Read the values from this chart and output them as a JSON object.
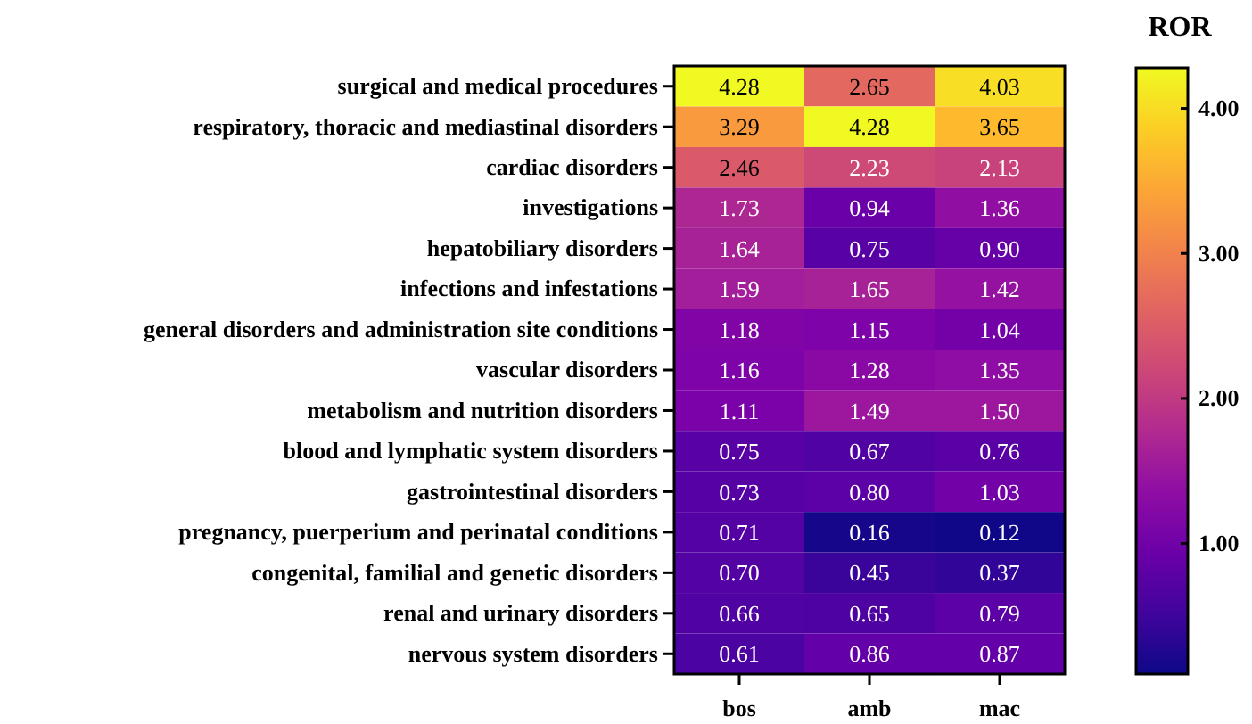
{
  "chart_data": {
    "type": "heatmap",
    "clabel": "ROR",
    "categories": [
      "bos",
      "amb",
      "mac"
    ],
    "y_categories": [
      "surgical and medical procedures",
      "respiratory, thoracic and mediastinal disorders",
      "cardiac disorders",
      "investigations",
      "hepatobiliary disorders",
      "infections and infestations",
      "general disorders and administration site conditions",
      "vascular disorders",
      "metabolism and nutrition disorders",
      "blood and lymphatic system disorders",
      "gastrointestinal disorders",
      "pregnancy, puerperium and perinatal conditions",
      "congenital, familial and genetic disorders",
      "renal and urinary disorders",
      "nervous system disorders"
    ],
    "cells": [
      [
        4.28,
        2.65,
        4.03
      ],
      [
        3.29,
        4.28,
        3.65
      ],
      [
        2.46,
        2.23,
        2.13
      ],
      [
        1.73,
        0.94,
        1.36
      ],
      [
        1.64,
        0.75,
        0.9
      ],
      [
        1.59,
        1.65,
        1.42
      ],
      [
        1.18,
        1.15,
        1.04
      ],
      [
        1.16,
        1.28,
        1.35
      ],
      [
        1.11,
        1.49,
        1.5
      ],
      [
        0.75,
        0.67,
        0.76
      ],
      [
        0.73,
        0.8,
        1.03
      ],
      [
        0.71,
        0.16,
        0.12
      ],
      [
        0.7,
        0.45,
        0.37
      ],
      [
        0.66,
        0.65,
        0.79
      ],
      [
        0.61,
        0.86,
        0.87
      ]
    ],
    "cell_labels": [
      [
        "4.28",
        "2.65",
        "4.03"
      ],
      [
        "3.29",
        "4.28",
        "3.65"
      ],
      [
        "2.46",
        "2.23",
        "2.13"
      ],
      [
        "1.73",
        "0.94",
        "1.36"
      ],
      [
        "1.64",
        "0.75",
        "0.90"
      ],
      [
        "1.59",
        "1.65",
        "1.42"
      ],
      [
        "1.18",
        "1.15",
        "1.04"
      ],
      [
        "1.16",
        "1.28",
        "1.35"
      ],
      [
        "1.11",
        "1.49",
        "1.50"
      ],
      [
        "0.75",
        "0.67",
        "0.76"
      ],
      [
        "0.73",
        "0.80",
        "1.03"
      ],
      [
        "0.71",
        "0.16",
        "0.12"
      ],
      [
        "0.70",
        "0.45",
        "0.37"
      ],
      [
        "0.66",
        "0.65",
        "0.79"
      ],
      [
        "0.61",
        "0.86",
        "0.87"
      ]
    ],
    "clim": [
      0.1,
      4.28
    ],
    "cticks": [
      {
        "value": 1,
        "label": "1.00"
      },
      {
        "value": 2,
        "label": "2.00"
      },
      {
        "value": 3,
        "label": "3.00"
      },
      {
        "value": 4,
        "label": "4.00"
      }
    ],
    "data_labels": true
  }
}
